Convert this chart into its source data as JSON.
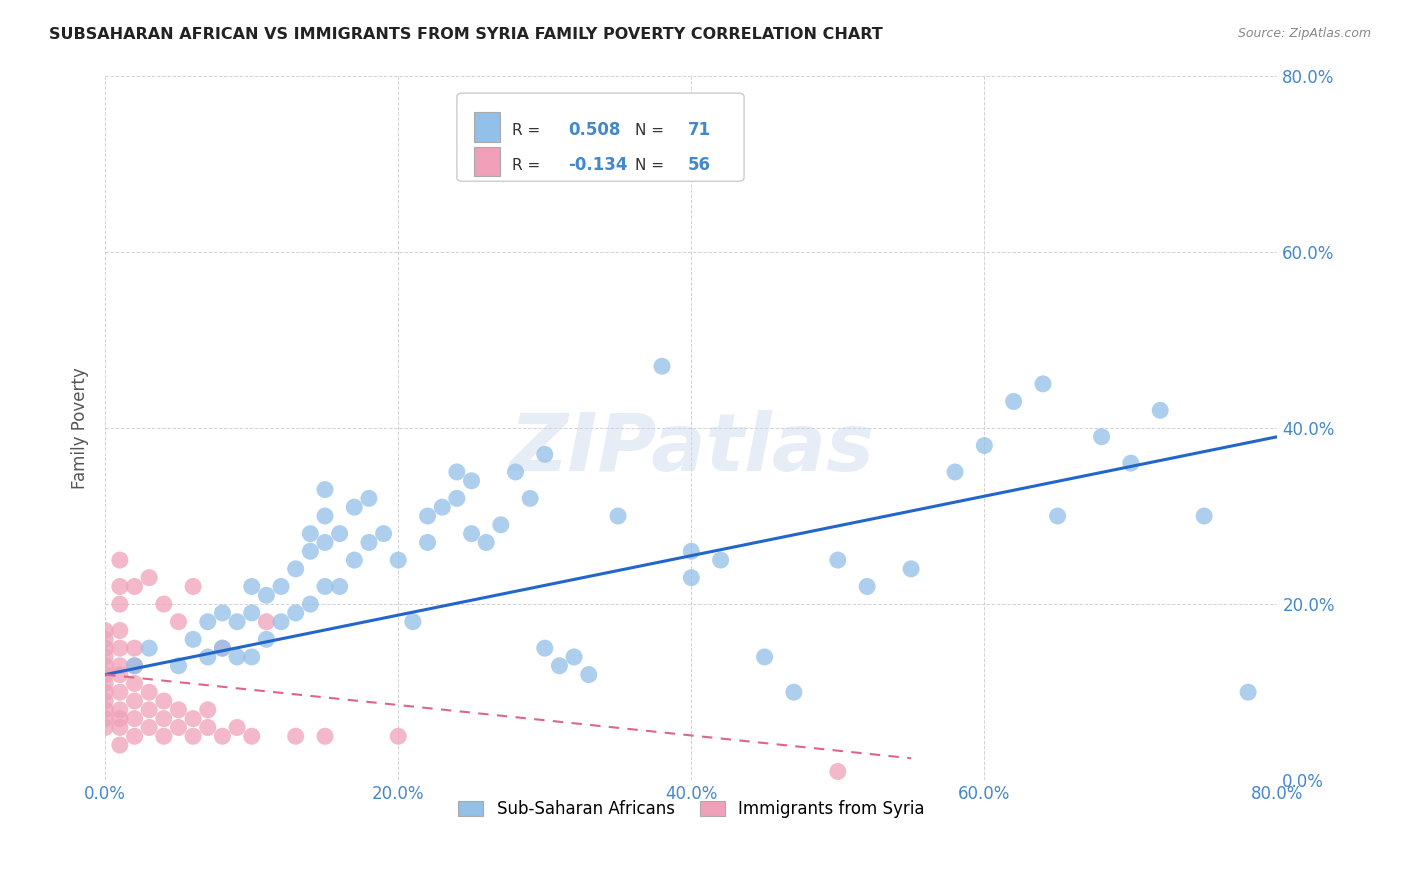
{
  "title": "SUBSAHARAN AFRICAN VS IMMIGRANTS FROM SYRIA FAMILY POVERTY CORRELATION CHART",
  "source": "Source: ZipAtlas.com",
  "ylabel": "Family Poverty",
  "legend_bottom": [
    "Sub-Saharan Africans",
    "Immigrants from Syria"
  ],
  "blue_r": "0.508",
  "blue_n": "71",
  "pink_r": "-0.134",
  "pink_n": "56",
  "blue_color": "#92c0e8",
  "pink_color": "#f0a0b8",
  "trend_blue": "#2266cc",
  "trend_pink": "#dd6688",
  "background": "#ffffff",
  "grid_color": "#c8c8c8",
  "title_color": "#222222",
  "axis_label_color": "#4488cc",
  "watermark": "ZIPatlas",
  "blue_scatter_x": [
    0.02,
    0.03,
    0.05,
    0.06,
    0.07,
    0.07,
    0.08,
    0.08,
    0.09,
    0.09,
    0.1,
    0.1,
    0.1,
    0.11,
    0.11,
    0.12,
    0.12,
    0.13,
    0.13,
    0.14,
    0.14,
    0.14,
    0.15,
    0.15,
    0.15,
    0.15,
    0.16,
    0.16,
    0.17,
    0.17,
    0.18,
    0.18,
    0.19,
    0.2,
    0.21,
    0.22,
    0.22,
    0.23,
    0.24,
    0.24,
    0.25,
    0.25,
    0.26,
    0.27,
    0.28,
    0.29,
    0.3,
    0.3,
    0.31,
    0.32,
    0.33,
    0.35,
    0.38,
    0.4,
    0.4,
    0.42,
    0.45,
    0.47,
    0.5,
    0.52,
    0.55,
    0.58,
    0.6,
    0.62,
    0.64,
    0.65,
    0.68,
    0.7,
    0.72,
    0.75,
    0.78
  ],
  "blue_scatter_y": [
    0.13,
    0.15,
    0.13,
    0.16,
    0.14,
    0.18,
    0.15,
    0.19,
    0.14,
    0.18,
    0.14,
    0.19,
    0.22,
    0.16,
    0.21,
    0.18,
    0.22,
    0.19,
    0.24,
    0.2,
    0.26,
    0.28,
    0.22,
    0.27,
    0.3,
    0.33,
    0.22,
    0.28,
    0.25,
    0.31,
    0.27,
    0.32,
    0.28,
    0.25,
    0.18,
    0.27,
    0.3,
    0.31,
    0.32,
    0.35,
    0.34,
    0.28,
    0.27,
    0.29,
    0.35,
    0.32,
    0.37,
    0.15,
    0.13,
    0.14,
    0.12,
    0.3,
    0.47,
    0.23,
    0.26,
    0.25,
    0.14,
    0.1,
    0.25,
    0.22,
    0.24,
    0.35,
    0.38,
    0.43,
    0.45,
    0.3,
    0.39,
    0.36,
    0.42,
    0.3,
    0.1
  ],
  "pink_scatter_x": [
    0.0,
    0.0,
    0.0,
    0.0,
    0.0,
    0.0,
    0.0,
    0.0,
    0.0,
    0.0,
    0.0,
    0.0,
    0.01,
    0.01,
    0.01,
    0.01,
    0.01,
    0.01,
    0.01,
    0.01,
    0.01,
    0.01,
    0.01,
    0.01,
    0.02,
    0.02,
    0.02,
    0.02,
    0.02,
    0.02,
    0.02,
    0.03,
    0.03,
    0.03,
    0.03,
    0.04,
    0.04,
    0.04,
    0.04,
    0.05,
    0.05,
    0.05,
    0.06,
    0.06,
    0.06,
    0.07,
    0.07,
    0.08,
    0.08,
    0.09,
    0.1,
    0.11,
    0.13,
    0.15,
    0.2,
    0.5
  ],
  "pink_scatter_y": [
    0.06,
    0.07,
    0.08,
    0.09,
    0.1,
    0.11,
    0.12,
    0.13,
    0.14,
    0.15,
    0.16,
    0.17,
    0.04,
    0.06,
    0.07,
    0.08,
    0.1,
    0.12,
    0.13,
    0.15,
    0.17,
    0.2,
    0.22,
    0.25,
    0.05,
    0.07,
    0.09,
    0.11,
    0.13,
    0.15,
    0.22,
    0.06,
    0.08,
    0.1,
    0.23,
    0.05,
    0.07,
    0.09,
    0.2,
    0.06,
    0.08,
    0.18,
    0.05,
    0.07,
    0.22,
    0.06,
    0.08,
    0.05,
    0.15,
    0.06,
    0.05,
    0.18,
    0.05,
    0.05,
    0.05,
    0.01
  ],
  "blue_trend_x": [
    0.0,
    0.8
  ],
  "blue_trend_y": [
    0.12,
    0.39
  ],
  "pink_trend_x": [
    0.0,
    0.55
  ],
  "pink_trend_y": [
    0.12,
    0.025
  ],
  "xlim": [
    0.0,
    0.8
  ],
  "ylim": [
    0.0,
    0.8
  ],
  "xticks": [
    0.0,
    0.2,
    0.4,
    0.6,
    0.8
  ],
  "yticks": [
    0.0,
    0.2,
    0.4,
    0.6,
    0.8
  ]
}
